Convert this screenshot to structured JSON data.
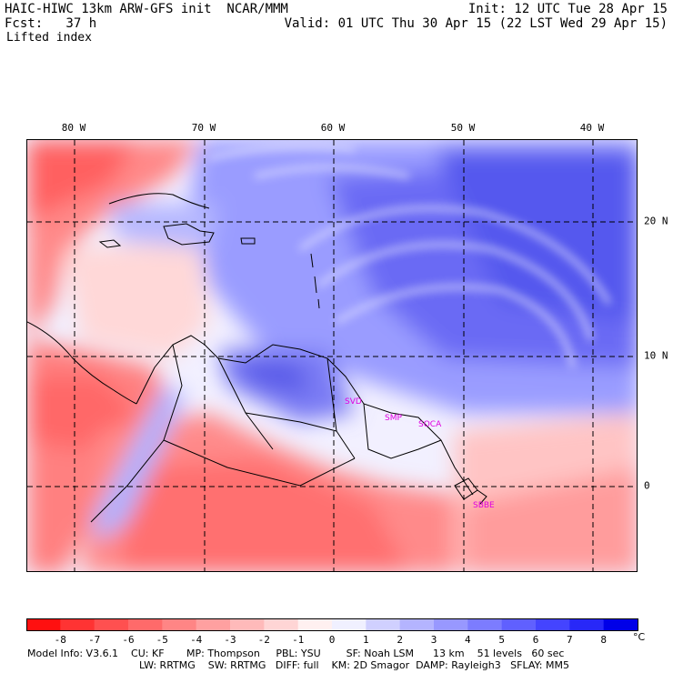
{
  "header": {
    "model_title": "HAIC-HIWC 13km ARW-GFS init  NCAR/MMM",
    "forecast": "Fcst:   37 h",
    "field": "Lifted index",
    "init": "Init: 12 UTC Tue 28 Apr 15",
    "valid": "Valid: 01 UTC Thu 30 Apr 15 (22 LST Wed 29 Apr 15)"
  },
  "map": {
    "longitude_labels": [
      "80 W",
      "70 W",
      "60 W",
      "50 W",
      "40 W"
    ],
    "latitude_labels": [
      "20 N",
      "10 N",
      "0"
    ],
    "station_labels": [
      "SVD",
      "SMP",
      "SOCA",
      "SBBE"
    ],
    "station_color": "#e000e0"
  },
  "colorbar": {
    "ticks": [
      "-8",
      "-7",
      "-6",
      "-5",
      "-4",
      "-3",
      "-2",
      "-1",
      "0",
      "1",
      "2",
      "3",
      "4",
      "5",
      "6",
      "7",
      "8"
    ],
    "unit": "°C",
    "colors": [
      "#ff1010",
      "#ff3333",
      "#ff5050",
      "#ff6a6a",
      "#ff8585",
      "#ffa0a0",
      "#ffbaba",
      "#ffd5d5",
      "#fff0f0",
      "#f0f0ff",
      "#d0d0ff",
      "#b4b4ff",
      "#9898ff",
      "#7c7cff",
      "#6060ff",
      "#4444ff",
      "#2828f8",
      "#0000e8"
    ]
  },
  "footer": {
    "line1": "Model Info: V3.6.1    CU: KF       MP: Thompson     PBL: YSU        SF: Noah LSM      13 km    51 levels   60 sec",
    "line2": "LW: RRTMG    SW: RRTMG   DIFF: full    KM: 2D Smagor  DAMP: Rayleigh3   SFLAY: MM5"
  }
}
